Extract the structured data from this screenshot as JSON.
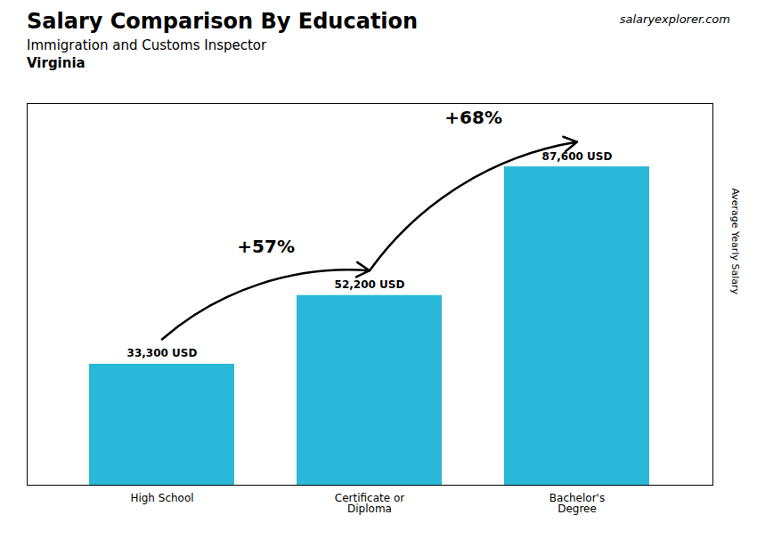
{
  "chart_data": {
    "type": "bar",
    "title": "Salary Comparison By Education",
    "subtitle": [
      "Immigration and Customs Inspector",
      "Virginia"
    ],
    "watermark": "salaryexplorer.com",
    "ylabel": "Average Yearly Salary",
    "categories": [
      "High School",
      "Certificate or\nDiploma",
      "Bachelor's\nDegree"
    ],
    "values": [
      33300,
      52200,
      87600
    ],
    "value_labels": [
      "33,300 USD",
      "52,200 USD",
      "87,600 USD"
    ],
    "data_labels": true,
    "annotations": [
      "+57%",
      "+68%"
    ],
    "color": "#29b8d8",
    "ylim": [
      0,
      105000
    ],
    "yticks": [],
    "tick_labels": "x"
  }
}
